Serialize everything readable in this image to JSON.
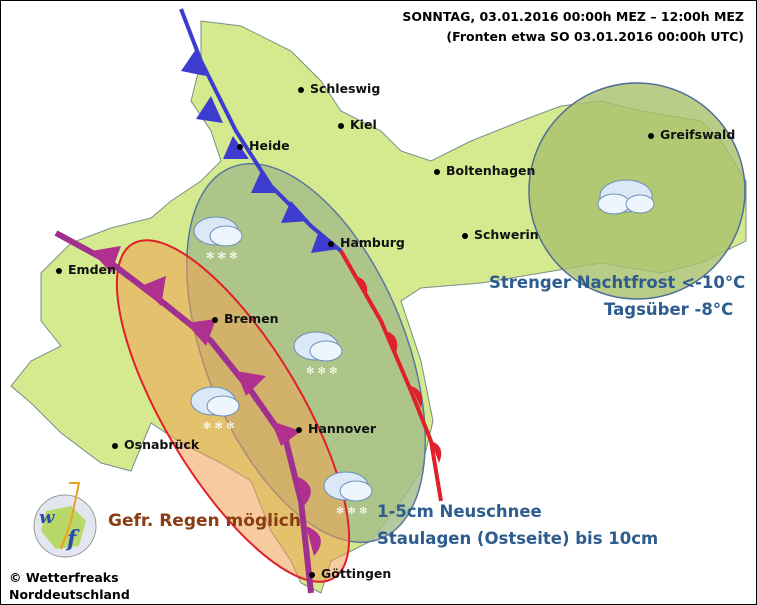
{
  "header": {
    "line1": "SONNTAG, 03.01.2016 00:00h MEZ – 12:00h MEZ",
    "line2": "(Fronten etwa SO 03.01.2016 00:00h UTC)"
  },
  "cities": [
    {
      "name": "Schleswig"
    },
    {
      "name": "Kiel"
    },
    {
      "name": "Heide"
    },
    {
      "name": "Boltenhagen"
    },
    {
      "name": "Greifswald"
    },
    {
      "name": "Hamburg"
    },
    {
      "name": "Schwerin"
    },
    {
      "name": "Emden"
    },
    {
      "name": "Bremen"
    },
    {
      "name": "Hannover"
    },
    {
      "name": "Osnabrück"
    },
    {
      "name": "Göttingen"
    }
  ],
  "annotations": {
    "frost_line1": "Strenger Nachtfrost <-10°C",
    "frost_line2": "Tagsüber -8°C",
    "snow_line1": "1-5cm Neuschnee",
    "snow_line2": "Staulagen (Ostseite) bis 10cm",
    "freezing_rain": "Gefr. Regen möglich"
  },
  "copyright": {
    "line1": "© Wetterfreaks",
    "line2": "Norddeutschland",
    "logo_text": "wf"
  },
  "colors": {
    "land": "#d5e98f",
    "snow_area": "#a7c06c",
    "cold_front": "#3c3ccf",
    "warm_front": "#e0202a",
    "occlusion": "#a0308f",
    "text_blue": "#2d5c8e",
    "text_brown": "#8a3c12"
  },
  "icons": [
    "snow-cloud-icon",
    "cloud-icon",
    "wf-logo"
  ]
}
